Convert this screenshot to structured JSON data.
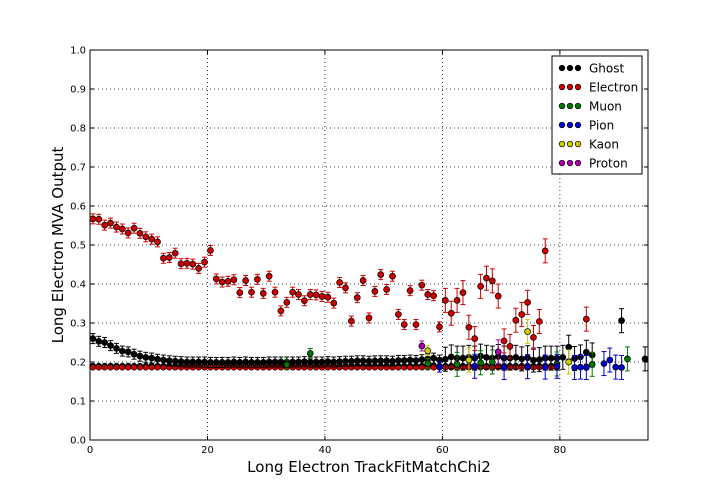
{
  "chart_data": {
    "type": "scatter",
    "title": "",
    "xlabel": "Long Electron TrackFitMatchChi2",
    "ylabel": "Long Electron MVA Output",
    "xlim": [
      0,
      95
    ],
    "ylim": [
      0.0,
      1.0
    ],
    "xticks": [
      0,
      20,
      40,
      60,
      80
    ],
    "yticks": [
      0.0,
      0.1,
      0.2,
      0.3,
      0.4,
      0.5,
      0.6,
      0.7,
      0.8,
      0.9,
      1.0
    ],
    "xtick_labels": [
      "0",
      "20",
      "40",
      "60",
      "80"
    ],
    "ytick_labels": [
      "0.0",
      "0.1",
      "0.2",
      "0.3",
      "0.4",
      "0.5",
      "0.6",
      "0.7",
      "0.8",
      "0.9",
      "1.0"
    ],
    "grid": true,
    "legend_position": "top-right",
    "series": [
      {
        "name": "Ghost",
        "color": "#000000",
        "points": [
          [
            0.5,
            0.26
          ],
          [
            1.5,
            0.253
          ],
          [
            2.5,
            0.25
          ],
          [
            3.5,
            0.242
          ],
          [
            4.5,
            0.235
          ],
          [
            5.5,
            0.228
          ],
          [
            6.5,
            0.226
          ],
          [
            7.5,
            0.22
          ],
          [
            8.5,
            0.215
          ],
          [
            9.5,
            0.212
          ],
          [
            10.5,
            0.21
          ],
          [
            11.5,
            0.207
          ],
          [
            12.5,
            0.205
          ],
          [
            13.5,
            0.203
          ],
          [
            14.5,
            0.202
          ],
          [
            15.5,
            0.201
          ],
          [
            16.5,
            0.2
          ],
          [
            17.5,
            0.2
          ],
          [
            18.5,
            0.2
          ],
          [
            19.5,
            0.2
          ],
          [
            20.5,
            0.199
          ],
          [
            21.5,
            0.199
          ],
          [
            22.5,
            0.199
          ],
          [
            23.5,
            0.199
          ],
          [
            24.5,
            0.2
          ],
          [
            25.5,
            0.199
          ],
          [
            26.5,
            0.2
          ],
          [
            27.5,
            0.199
          ],
          [
            28.5,
            0.199
          ],
          [
            29.5,
            0.199
          ],
          [
            30.5,
            0.2
          ],
          [
            31.5,
            0.2
          ],
          [
            32.5,
            0.2
          ],
          [
            33.5,
            0.2
          ],
          [
            34.5,
            0.2
          ],
          [
            35.5,
            0.2
          ],
          [
            36.5,
            0.201
          ],
          [
            37.5,
            0.2
          ],
          [
            38.5,
            0.2
          ],
          [
            39.5,
            0.2
          ],
          [
            40.5,
            0.201
          ],
          [
            41.5,
            0.2
          ],
          [
            42.5,
            0.201
          ],
          [
            43.5,
            0.202
          ],
          [
            44.5,
            0.202
          ],
          [
            45.5,
            0.203
          ],
          [
            46.5,
            0.203
          ],
          [
            47.5,
            0.202
          ],
          [
            48.5,
            0.203
          ],
          [
            49.5,
            0.203
          ],
          [
            50.5,
            0.203
          ],
          [
            51.5,
            0.202
          ],
          [
            52.5,
            0.204
          ],
          [
            53.5,
            0.204
          ],
          [
            54.5,
            0.205
          ],
          [
            55.5,
            0.204
          ],
          [
            56.5,
            0.206
          ],
          [
            57.5,
            0.208
          ],
          [
            58.5,
            0.21
          ],
          [
            59.5,
            0.205
          ],
          [
            60.5,
            0.207
          ],
          [
            61.5,
            0.213
          ],
          [
            62.5,
            0.21
          ],
          [
            63.5,
            0.21
          ],
          [
            64.5,
            0.212
          ],
          [
            65.5,
            0.21
          ],
          [
            66.5,
            0.215
          ],
          [
            67.5,
            0.212
          ],
          [
            68.5,
            0.21
          ],
          [
            69.5,
            0.214
          ],
          [
            70.5,
            0.21
          ],
          [
            71.5,
            0.21
          ],
          [
            72.5,
            0.212
          ],
          [
            73.5,
            0.208
          ],
          [
            74.5,
            0.211
          ],
          [
            75.5,
            0.205
          ],
          [
            76.5,
            0.206
          ],
          [
            77.5,
            0.21
          ],
          [
            78.5,
            0.21
          ],
          [
            79.5,
            0.21
          ],
          [
            80.5,
            0.212
          ],
          [
            81.5,
            0.238
          ],
          [
            82.5,
            0.209
          ],
          [
            83.5,
            0.213
          ],
          [
            84.5,
            0.225
          ],
          [
            85.5,
            0.218
          ],
          [
            90.5,
            0.306
          ],
          [
            94.5,
            0.208
          ]
        ]
      },
      {
        "name": "Electron",
        "color": "#cc0000",
        "points": [
          [
            0.5,
            0.567
          ],
          [
            1.5,
            0.566
          ],
          [
            2.5,
            0.551
          ],
          [
            3.5,
            0.556
          ],
          [
            4.5,
            0.546
          ],
          [
            5.5,
            0.541
          ],
          [
            6.5,
            0.531
          ],
          [
            7.5,
            0.543
          ],
          [
            8.5,
            0.53
          ],
          [
            9.5,
            0.521
          ],
          [
            10.5,
            0.515
          ],
          [
            11.5,
            0.508
          ],
          [
            12.5,
            0.466
          ],
          [
            13.5,
            0.468
          ],
          [
            14.5,
            0.479
          ],
          [
            15.5,
            0.452
          ],
          [
            16.5,
            0.453
          ],
          [
            17.5,
            0.451
          ],
          [
            18.5,
            0.44
          ],
          [
            19.5,
            0.456
          ],
          [
            20.5,
            0.486
          ],
          [
            21.5,
            0.413
          ],
          [
            22.5,
            0.405
          ],
          [
            23.5,
            0.407
          ],
          [
            24.5,
            0.411
          ],
          [
            25.5,
            0.378
          ],
          [
            26.5,
            0.409
          ],
          [
            27.5,
            0.379
          ],
          [
            28.5,
            0.412
          ],
          [
            29.5,
            0.376
          ],
          [
            30.5,
            0.42
          ],
          [
            31.5,
            0.379
          ],
          [
            32.5,
            0.331
          ],
          [
            33.5,
            0.353
          ],
          [
            34.5,
            0.379
          ],
          [
            35.5,
            0.373
          ],
          [
            36.5,
            0.357
          ],
          [
            37.5,
            0.373
          ],
          [
            38.5,
            0.372
          ],
          [
            39.5,
            0.368
          ],
          [
            40.5,
            0.366
          ],
          [
            41.5,
            0.351
          ],
          [
            42.5,
            0.404
          ],
          [
            43.5,
            0.39
          ],
          [
            44.5,
            0.305
          ],
          [
            45.5,
            0.365
          ],
          [
            46.5,
            0.409
          ],
          [
            47.5,
            0.313
          ],
          [
            48.5,
            0.381
          ],
          [
            49.5,
            0.424
          ],
          [
            50.5,
            0.386
          ],
          [
            51.5,
            0.42
          ],
          [
            52.5,
            0.322
          ],
          [
            53.5,
            0.296
          ],
          [
            54.5,
            0.383
          ],
          [
            55.5,
            0.296
          ],
          [
            56.5,
            0.397
          ],
          [
            57.5,
            0.373
          ],
          [
            58.5,
            0.37
          ],
          [
            59.5,
            0.29
          ],
          [
            60.5,
            0.358
          ],
          [
            61.5,
            0.325
          ],
          [
            62.5,
            0.358
          ],
          [
            63.5,
            0.378
          ],
          [
            64.5,
            0.289
          ],
          [
            65.5,
            0.26
          ],
          [
            66.5,
            0.394
          ],
          [
            67.5,
            0.415
          ],
          [
            68.5,
            0.408
          ],
          [
            69.5,
            0.369
          ],
          [
            70.5,
            0.254
          ],
          [
            71.5,
            0.24
          ],
          [
            72.5,
            0.307
          ],
          [
            73.5,
            0.322
          ],
          [
            74.5,
            0.353
          ],
          [
            75.5,
            0.263
          ],
          [
            76.5,
            0.304
          ],
          [
            77.5,
            0.485
          ],
          [
            84.5,
            0.31
          ]
        ]
      },
      {
        "name": "Muon",
        "color": "#007700",
        "points": [
          [
            33.5,
            0.193
          ],
          [
            37.5,
            0.222
          ],
          [
            57.5,
            0.196
          ],
          [
            62.5,
            0.194
          ],
          [
            66.5,
            0.198
          ],
          [
            68.5,
            0.2
          ],
          [
            79.5,
            0.195
          ],
          [
            85.5,
            0.194
          ],
          [
            91.5,
            0.208
          ]
        ]
      },
      {
        "name": "Pion",
        "color": "#0000cc",
        "points": [
          [
            59.5,
            0.187
          ],
          [
            65.5,
            0.189
          ],
          [
            70.5,
            0.186
          ],
          [
            74.5,
            0.188
          ],
          [
            77.5,
            0.187
          ],
          [
            79.5,
            0.189
          ],
          [
            82.5,
            0.186
          ],
          [
            83.5,
            0.187
          ],
          [
            84.5,
            0.186
          ],
          [
            87.5,
            0.196
          ],
          [
            88.5,
            0.205
          ],
          [
            89.5,
            0.187
          ],
          [
            90.5,
            0.186
          ]
        ]
      },
      {
        "name": "Kaon",
        "color": "#cccc00",
        "points": [
          [
            57.5,
            0.229
          ],
          [
            64.5,
            0.205
          ],
          [
            74.5,
            0.278
          ],
          [
            81.5,
            0.2
          ]
        ]
      },
      {
        "name": "Proton",
        "color": "#aa00aa",
        "points": [
          [
            56.5,
            0.241
          ],
          [
            69.5,
            0.226
          ]
        ]
      }
    ]
  }
}
